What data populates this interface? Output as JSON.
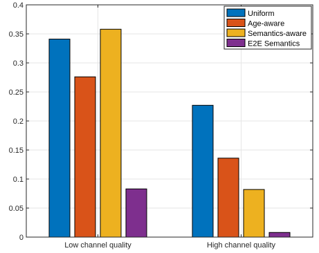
{
  "chart_data": {
    "type": "bar",
    "title": "",
    "xlabel": "",
    "ylabel": "",
    "ylim": [
      0,
      0.4
    ],
    "yticks": [
      0,
      0.05,
      0.1,
      0.15,
      0.2,
      0.25,
      0.3,
      0.35,
      0.4
    ],
    "ytick_labels": [
      "0",
      "0.05",
      "0.1",
      "0.15",
      "0.2",
      "0.25",
      "0.3",
      "0.35",
      "0.4"
    ],
    "grid": true,
    "legend_position": "top-right",
    "categories": [
      "Low channel quality",
      "High channel quality"
    ],
    "series": [
      {
        "name": "Uniform",
        "color": "#0072BD",
        "values": [
          0.341,
          0.227
        ]
      },
      {
        "name": "Age-aware",
        "color": "#D95319",
        "values": [
          0.276,
          0.136
        ]
      },
      {
        "name": "Semantics-aware",
        "color": "#EDB120",
        "values": [
          0.358,
          0.082
        ]
      },
      {
        "name": "E2E Semantics",
        "color": "#7E2F8E",
        "values": [
          0.083,
          0.008
        ]
      }
    ]
  }
}
